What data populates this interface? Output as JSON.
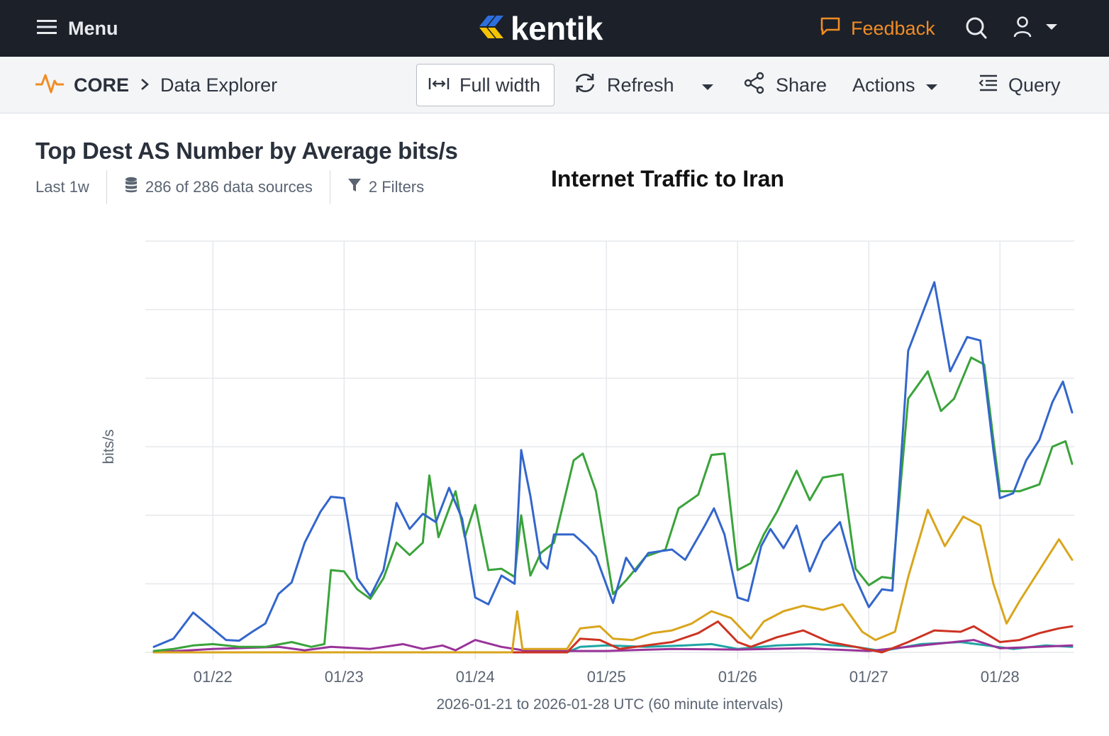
{
  "topbar": {
    "menu_label": "Menu",
    "logo_text": "kentik",
    "feedback_label": "Feedback",
    "icons": [
      "hamburger-icon",
      "chat-icon",
      "search-icon",
      "user-icon",
      "chevron-down-icon"
    ]
  },
  "toolbar": {
    "breadcrumb_root": "CORE",
    "breadcrumb_page": "Data Explorer",
    "full_width_label": "Full width",
    "refresh_label": "Refresh",
    "share_label": "Share",
    "actions_label": "Actions",
    "query_label": "Query"
  },
  "panel": {
    "title": "Top Dest AS Number by Average bits/s",
    "time_range": "Last 1w",
    "data_sources": "286 of 286 data sources",
    "filters": "2 Filters",
    "overlay_title": "Internet Traffic to Iran"
  },
  "colors": {
    "brand_orange": "#f08c24",
    "topbar_bg": "#1b2029",
    "blue": "#3366cc",
    "green": "#3aa33a",
    "amber": "#d9a51c",
    "red": "#cc3322",
    "purple": "#993399",
    "teal": "#1fa5a5"
  },
  "chart_data": {
    "type": "line",
    "title": "",
    "xlabel": "2026-01-21 to 2026-01-28 UTC (60 minute intervals)",
    "ylabel": "bits/s",
    "x_ticks": [
      "01/22",
      "01/23",
      "01/24",
      "01/25",
      "01/26",
      "01/27",
      "01/28"
    ],
    "x_start_day": 21.55,
    "x_end_day": 28.55,
    "y_scale_note": "tick values hidden; series values in relative units 0-6",
    "ylim": [
      0,
      6
    ],
    "grid": true,
    "series": [
      {
        "color": "#3366cc",
        "points": [
          [
            21.55,
            0.08
          ],
          [
            21.7,
            0.2
          ],
          [
            21.85,
            0.58
          ],
          [
            21.95,
            0.42
          ],
          [
            22.1,
            0.18
          ],
          [
            22.2,
            0.17
          ],
          [
            22.3,
            0.3
          ],
          [
            22.4,
            0.42
          ],
          [
            22.5,
            0.85
          ],
          [
            22.6,
            1.02
          ],
          [
            22.7,
            1.6
          ],
          [
            22.82,
            2.05
          ],
          [
            22.9,
            2.27
          ],
          [
            23.0,
            2.25
          ],
          [
            23.1,
            1.08
          ],
          [
            23.2,
            0.82
          ],
          [
            23.3,
            1.2
          ],
          [
            23.4,
            2.18
          ],
          [
            23.5,
            1.8
          ],
          [
            23.6,
            2.02
          ],
          [
            23.7,
            1.9
          ],
          [
            23.8,
            2.4
          ],
          [
            23.9,
            1.95
          ],
          [
            24.0,
            0.8
          ],
          [
            24.1,
            0.7
          ],
          [
            24.2,
            1.12
          ],
          [
            24.3,
            1.0
          ],
          [
            24.35,
            2.95
          ],
          [
            24.42,
            2.28
          ],
          [
            24.5,
            1.32
          ],
          [
            24.55,
            1.22
          ],
          [
            24.6,
            1.72
          ],
          [
            24.75,
            1.72
          ],
          [
            24.85,
            1.55
          ],
          [
            24.92,
            1.4
          ],
          [
            25.05,
            0.72
          ],
          [
            25.15,
            1.38
          ],
          [
            25.22,
            1.18
          ],
          [
            25.32,
            1.45
          ],
          [
            25.5,
            1.5
          ],
          [
            25.6,
            1.35
          ],
          [
            25.75,
            1.85
          ],
          [
            25.82,
            2.1
          ],
          [
            25.9,
            1.72
          ],
          [
            26.0,
            0.8
          ],
          [
            26.08,
            0.75
          ],
          [
            26.18,
            1.55
          ],
          [
            26.25,
            1.8
          ],
          [
            26.35,
            1.52
          ],
          [
            26.45,
            1.85
          ],
          [
            26.55,
            1.18
          ],
          [
            26.65,
            1.62
          ],
          [
            26.78,
            1.9
          ],
          [
            26.9,
            1.08
          ],
          [
            27.0,
            0.66
          ],
          [
            27.1,
            0.92
          ],
          [
            27.18,
            0.9
          ],
          [
            27.3,
            4.4
          ],
          [
            27.5,
            5.4
          ],
          [
            27.62,
            4.1
          ],
          [
            27.75,
            4.6
          ],
          [
            27.85,
            4.55
          ],
          [
            27.95,
            2.95
          ],
          [
            28.0,
            2.25
          ],
          [
            28.1,
            2.32
          ],
          [
            28.2,
            2.8
          ],
          [
            28.3,
            3.1
          ],
          [
            28.4,
            3.65
          ],
          [
            28.48,
            3.95
          ],
          [
            28.55,
            3.5
          ]
        ]
      },
      {
        "color": "#3aa33a",
        "points": [
          [
            21.55,
            0.02
          ],
          [
            21.7,
            0.05
          ],
          [
            21.85,
            0.1
          ],
          [
            22.0,
            0.12
          ],
          [
            22.2,
            0.08
          ],
          [
            22.4,
            0.08
          ],
          [
            22.6,
            0.15
          ],
          [
            22.75,
            0.08
          ],
          [
            22.85,
            0.12
          ],
          [
            22.9,
            1.2
          ],
          [
            23.0,
            1.18
          ],
          [
            23.1,
            0.92
          ],
          [
            23.2,
            0.78
          ],
          [
            23.3,
            1.08
          ],
          [
            23.4,
            1.6
          ],
          [
            23.5,
            1.42
          ],
          [
            23.6,
            1.6
          ],
          [
            23.65,
            2.58
          ],
          [
            23.72,
            1.68
          ],
          [
            23.85,
            2.35
          ],
          [
            23.92,
            1.68
          ],
          [
            24.0,
            2.15
          ],
          [
            24.1,
            1.2
          ],
          [
            24.2,
            1.22
          ],
          [
            24.3,
            1.1
          ],
          [
            24.35,
            2.0
          ],
          [
            24.42,
            1.12
          ],
          [
            24.5,
            1.45
          ],
          [
            24.6,
            1.6
          ],
          [
            24.75,
            2.8
          ],
          [
            24.82,
            2.9
          ],
          [
            24.92,
            2.35
          ],
          [
            25.05,
            0.85
          ],
          [
            25.15,
            1.05
          ],
          [
            25.3,
            1.4
          ],
          [
            25.45,
            1.5
          ],
          [
            25.55,
            2.1
          ],
          [
            25.7,
            2.3
          ],
          [
            25.8,
            2.88
          ],
          [
            25.9,
            2.9
          ],
          [
            26.0,
            1.2
          ],
          [
            26.1,
            1.3
          ],
          [
            26.2,
            1.72
          ],
          [
            26.3,
            2.05
          ],
          [
            26.45,
            2.65
          ],
          [
            26.55,
            2.22
          ],
          [
            26.65,
            2.55
          ],
          [
            26.8,
            2.6
          ],
          [
            26.9,
            1.22
          ],
          [
            27.0,
            0.98
          ],
          [
            27.1,
            1.1
          ],
          [
            27.18,
            1.08
          ],
          [
            27.3,
            3.7
          ],
          [
            27.45,
            4.1
          ],
          [
            27.55,
            3.52
          ],
          [
            27.65,
            3.7
          ],
          [
            27.78,
            4.3
          ],
          [
            27.88,
            4.2
          ],
          [
            27.95,
            3.1
          ],
          [
            28.0,
            2.35
          ],
          [
            28.15,
            2.35
          ],
          [
            28.3,
            2.45
          ],
          [
            28.4,
            3.0
          ],
          [
            28.5,
            3.08
          ],
          [
            28.55,
            2.75
          ]
        ]
      },
      {
        "color": "#d9a51c",
        "points": [
          [
            21.55,
            0.0
          ],
          [
            24.28,
            0.0
          ],
          [
            24.32,
            0.6
          ],
          [
            24.36,
            0.05
          ],
          [
            24.7,
            0.05
          ],
          [
            24.8,
            0.35
          ],
          [
            24.95,
            0.38
          ],
          [
            25.05,
            0.2
          ],
          [
            25.2,
            0.18
          ],
          [
            25.35,
            0.28
          ],
          [
            25.5,
            0.32
          ],
          [
            25.65,
            0.42
          ],
          [
            25.8,
            0.6
          ],
          [
            25.95,
            0.5
          ],
          [
            26.1,
            0.2
          ],
          [
            26.2,
            0.45
          ],
          [
            26.35,
            0.6
          ],
          [
            26.5,
            0.68
          ],
          [
            26.65,
            0.62
          ],
          [
            26.8,
            0.7
          ],
          [
            26.95,
            0.3
          ],
          [
            27.05,
            0.18
          ],
          [
            27.2,
            0.3
          ],
          [
            27.3,
            1.1
          ],
          [
            27.45,
            2.08
          ],
          [
            27.58,
            1.55
          ],
          [
            27.72,
            1.98
          ],
          [
            27.85,
            1.85
          ],
          [
            27.95,
            1.0
          ],
          [
            28.05,
            0.42
          ],
          [
            28.15,
            0.75
          ],
          [
            28.3,
            1.2
          ],
          [
            28.45,
            1.65
          ],
          [
            28.55,
            1.35
          ]
        ]
      },
      {
        "color": "#cc3322",
        "points": [
          [
            21.55,
            0.0
          ],
          [
            24.7,
            0.0
          ],
          [
            24.8,
            0.2
          ],
          [
            24.95,
            0.18
          ],
          [
            25.1,
            0.05
          ],
          [
            25.5,
            0.15
          ],
          [
            25.7,
            0.28
          ],
          [
            25.85,
            0.45
          ],
          [
            26.0,
            0.15
          ],
          [
            26.1,
            0.08
          ],
          [
            26.3,
            0.22
          ],
          [
            26.5,
            0.32
          ],
          [
            26.7,
            0.15
          ],
          [
            26.9,
            0.08
          ],
          [
            27.1,
            0.0
          ],
          [
            27.3,
            0.15
          ],
          [
            27.5,
            0.32
          ],
          [
            27.7,
            0.3
          ],
          [
            27.8,
            0.38
          ],
          [
            28.0,
            0.15
          ],
          [
            28.15,
            0.18
          ],
          [
            28.3,
            0.28
          ],
          [
            28.45,
            0.35
          ],
          [
            28.55,
            0.38
          ]
        ]
      },
      {
        "color": "#993399",
        "points": [
          [
            21.55,
            0.0
          ],
          [
            22.0,
            0.05
          ],
          [
            22.5,
            0.08
          ],
          [
            22.7,
            0.03
          ],
          [
            22.9,
            0.08
          ],
          [
            23.2,
            0.05
          ],
          [
            23.45,
            0.12
          ],
          [
            23.6,
            0.05
          ],
          [
            23.75,
            0.1
          ],
          [
            23.85,
            0.03
          ],
          [
            24.0,
            0.18
          ],
          [
            24.2,
            0.08
          ],
          [
            24.4,
            0.02
          ],
          [
            25.0,
            0.02
          ],
          [
            25.5,
            0.05
          ],
          [
            26.0,
            0.04
          ],
          [
            26.5,
            0.06
          ],
          [
            27.0,
            0.02
          ],
          [
            27.5,
            0.12
          ],
          [
            27.8,
            0.18
          ],
          [
            28.0,
            0.06
          ],
          [
            28.3,
            0.08
          ],
          [
            28.55,
            0.1
          ]
        ]
      },
      {
        "color": "#1fa5a5",
        "points": [
          [
            21.55,
            0.0
          ],
          [
            24.7,
            0.0
          ],
          [
            24.8,
            0.08
          ],
          [
            25.0,
            0.1
          ],
          [
            25.3,
            0.08
          ],
          [
            25.6,
            0.1
          ],
          [
            25.8,
            0.12
          ],
          [
            26.0,
            0.05
          ],
          [
            26.3,
            0.1
          ],
          [
            26.6,
            0.12
          ],
          [
            26.9,
            0.08
          ],
          [
            27.1,
            0.02
          ],
          [
            27.4,
            0.12
          ],
          [
            27.7,
            0.15
          ],
          [
            27.9,
            0.1
          ],
          [
            28.1,
            0.05
          ],
          [
            28.35,
            0.1
          ],
          [
            28.55,
            0.08
          ]
        ]
      }
    ]
  }
}
